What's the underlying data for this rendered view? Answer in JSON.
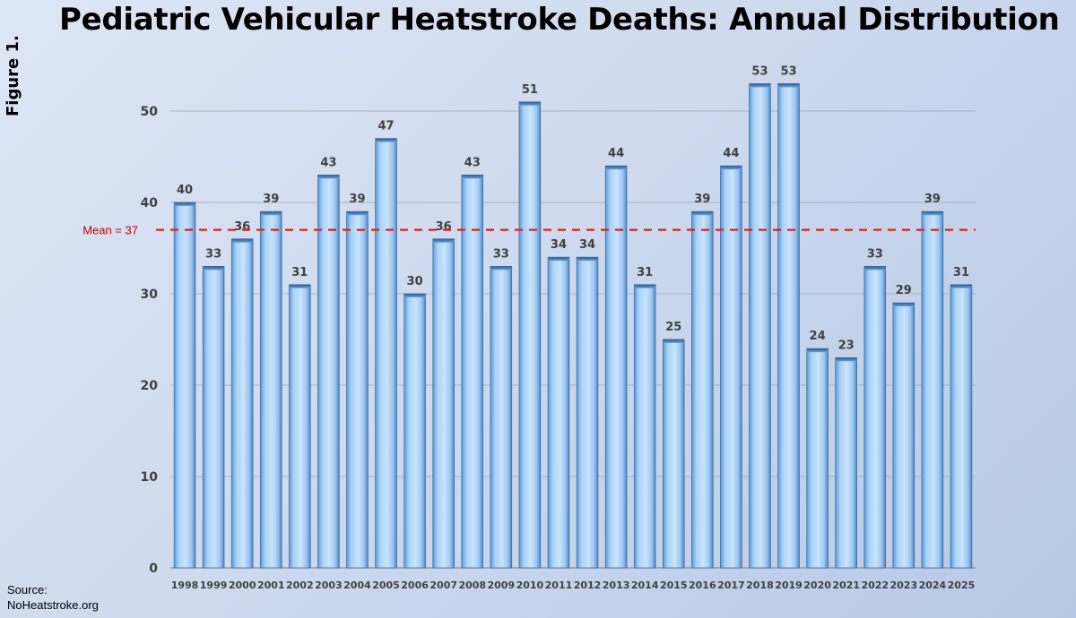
{
  "page": {
    "title": "Pediatric Vehicular Heatstroke Deaths: Annual Distribution",
    "figure_label": "Figure 1.",
    "source_line1": "Source:",
    "source_line2": "NoHeatstroke.org"
  },
  "chart_data": {
    "type": "bar",
    "title": "Pediatric Vehicular Heatstroke Deaths: Annual Distribution",
    "xlabel": "",
    "ylabel": "",
    "categories": [
      "1998",
      "1999",
      "2000",
      "2001",
      "2002",
      "2003",
      "2004",
      "2005",
      "2006",
      "2007",
      "2008",
      "2009",
      "2010",
      "2011",
      "2012",
      "2013",
      "2014",
      "2015",
      "2016",
      "2017",
      "2018",
      "2019",
      "2020",
      "2021",
      "2022",
      "2023",
      "2024",
      "2025"
    ],
    "values": [
      40,
      33,
      36,
      39,
      31,
      43,
      39,
      47,
      30,
      36,
      43,
      33,
      51,
      34,
      34,
      44,
      31,
      25,
      39,
      44,
      53,
      53,
      24,
      23,
      33,
      29,
      39,
      31
    ],
    "ylim": [
      0,
      55
    ],
    "yticks": [
      0,
      10,
      20,
      30,
      40,
      50
    ],
    "grid": true,
    "mean": {
      "value": 37,
      "label": "Mean = 37",
      "color": "#e02020"
    },
    "bar_color": "#9cc8f5",
    "data_labels": true,
    "legend": "none"
  }
}
